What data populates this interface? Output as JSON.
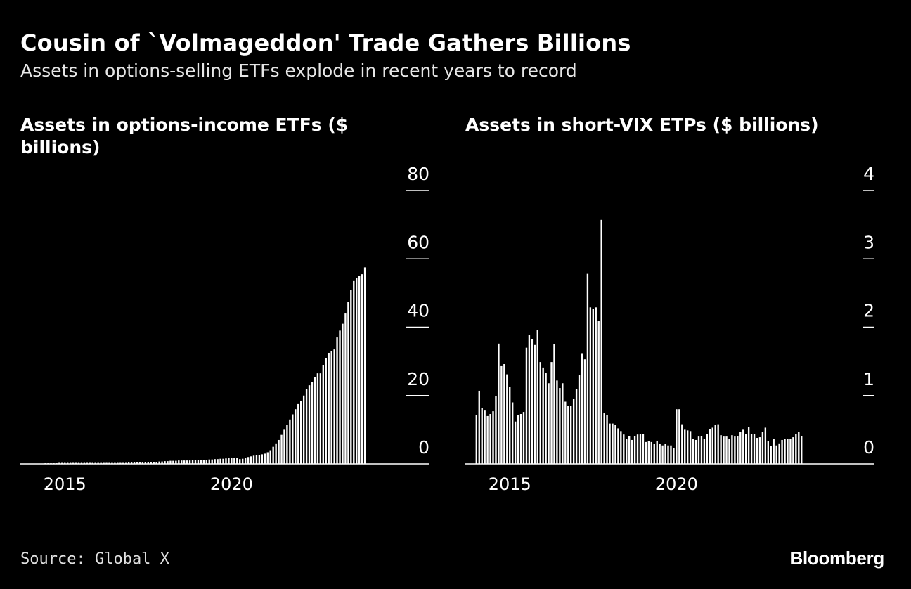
{
  "title": "Cousin of `Volmageddon' Trade Gathers Billions",
  "subtitle": "Assets in options-selling ETFs explode in recent years to record",
  "source": "Source: Global X",
  "brand": "Bloomberg",
  "colors": {
    "background": "#000000",
    "bars": "#ffffff",
    "axis": "#ffffff"
  },
  "chart_data": [
    {
      "type": "bar",
      "title": "Assets in options-income ETFs ($ billions)",
      "x_ticks": [
        "2015",
        "2020"
      ],
      "y_ticks": [
        "0",
        "20",
        "40",
        "60",
        "80"
      ],
      "ylim": [
        0,
        80
      ],
      "xlim": [
        "2013-09",
        "2025-12"
      ],
      "y_axis_position": "right",
      "grid": false,
      "period": "monthly",
      "start": "2014-06",
      "values": [
        0.2,
        0.2,
        0.2,
        0.2,
        0.2,
        0.3,
        0.3,
        0.3,
        0.3,
        0.3,
        0.3,
        0.3,
        0.3,
        0.3,
        0.3,
        0.3,
        0.3,
        0.3,
        0.3,
        0.3,
        0.3,
        0.3,
        0.3,
        0.3,
        0.3,
        0.3,
        0.3,
        0.3,
        0.3,
        0.3,
        0.4,
        0.4,
        0.4,
        0.4,
        0.4,
        0.4,
        0.5,
        0.5,
        0.5,
        0.6,
        0.6,
        0.7,
        0.7,
        0.8,
        0.8,
        0.9,
        0.9,
        0.9,
        1.0,
        1.0,
        1.0,
        1.0,
        1.0,
        1.1,
        1.1,
        1.2,
        1.2,
        1.2,
        1.2,
        1.3,
        1.3,
        1.4,
        1.4,
        1.5,
        1.5,
        1.6,
        1.7,
        1.8,
        1.8,
        1.8,
        1.4,
        1.5,
        1.7,
        2.0,
        2.2,
        2.4,
        2.5,
        2.6,
        2.8,
        3.0,
        3.4,
        4.0,
        5.0,
        6.0,
        7.0,
        8.5,
        10.0,
        11.5,
        13.0,
        14.5,
        16.0,
        17.5,
        18.5,
        20.0,
        22.0,
        23.0,
        24.0,
        25.5,
        26.5,
        26.5,
        29.0,
        31.0,
        32.5,
        33.0,
        33.5,
        37.0,
        39.0,
        41.0,
        44.0,
        47.5,
        51.0,
        53.5,
        54.5,
        55.0,
        55.5,
        57.5
      ]
    },
    {
      "type": "bar",
      "title": "Assets in short-VIX ETPs ($ billions)",
      "x_ticks": [
        "2015",
        "2020"
      ],
      "y_ticks": [
        "0",
        "1",
        "2",
        "3",
        "4"
      ],
      "ylim": [
        0,
        4
      ],
      "xlim": [
        "2013-09",
        "2025-12"
      ],
      "y_axis_position": "right",
      "grid": false,
      "period": "monthly",
      "start": "2014-01",
      "values": [
        0.72,
        1.07,
        0.82,
        0.78,
        0.7,
        0.73,
        0.77,
        0.99,
        1.76,
        1.43,
        1.46,
        1.31,
        1.13,
        0.9,
        0.62,
        0.71,
        0.73,
        0.76,
        1.7,
        1.89,
        1.83,
        1.74,
        1.96,
        1.49,
        1.41,
        1.33,
        1.18,
        1.49,
        1.75,
        1.22,
        1.11,
        1.18,
        0.91,
        0.85,
        0.85,
        0.95,
        1.1,
        1.3,
        1.62,
        1.53,
        2.78,
        2.29,
        2.27,
        2.29,
        2.09,
        3.57,
        0.74,
        0.71,
        0.59,
        0.59,
        0.57,
        0.52,
        0.48,
        0.43,
        0.37,
        0.41,
        0.35,
        0.41,
        0.43,
        0.44,
        0.44,
        0.32,
        0.33,
        0.32,
        0.29,
        0.33,
        0.29,
        0.27,
        0.29,
        0.27,
        0.27,
        0.23,
        0.8,
        0.8,
        0.58,
        0.5,
        0.49,
        0.48,
        0.37,
        0.35,
        0.4,
        0.41,
        0.37,
        0.44,
        0.51,
        0.53,
        0.57,
        0.58,
        0.42,
        0.4,
        0.4,
        0.37,
        0.42,
        0.4,
        0.41,
        0.47,
        0.5,
        0.44,
        0.54,
        0.44,
        0.44,
        0.38,
        0.39,
        0.47,
        0.53,
        0.33,
        0.26,
        0.36,
        0.27,
        0.3,
        0.35,
        0.37,
        0.37,
        0.37,
        0.39,
        0.44,
        0.47,
        0.41
      ]
    }
  ]
}
